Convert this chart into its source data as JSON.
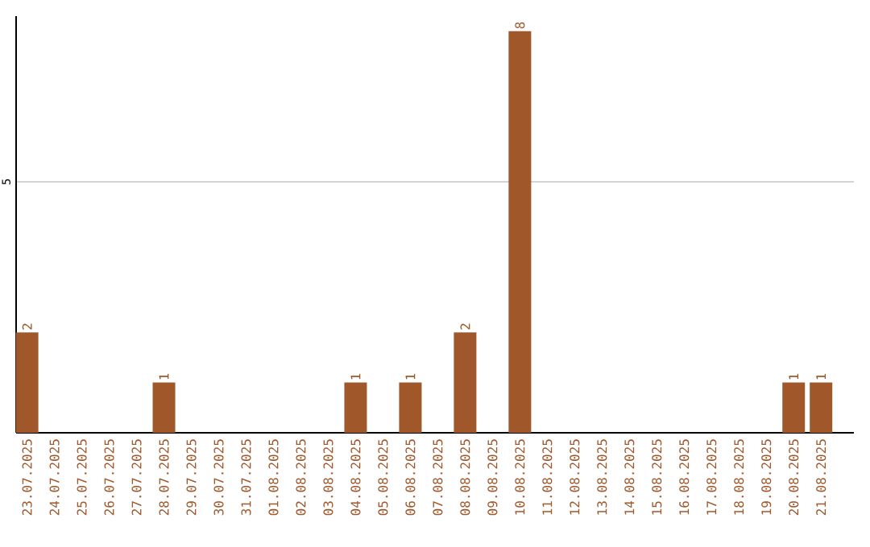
{
  "chart_data": {
    "type": "bar",
    "categories": [
      "23.07.2025",
      "24.07.2025",
      "25.07.2025",
      "26.07.2025",
      "27.07.2025",
      "28.07.2025",
      "29.07.2025",
      "30.07.2025",
      "31.07.2025",
      "01.08.2025",
      "02.08.2025",
      "03.08.2025",
      "04.08.2025",
      "05.08.2025",
      "06.08.2025",
      "07.08.2025",
      "08.08.2025",
      "09.08.2025",
      "10.08.2025",
      "11.08.2025",
      "12.08.2025",
      "13.08.2025",
      "14.08.2025",
      "15.08.2025",
      "16.08.2025",
      "17.08.2025",
      "18.08.2025",
      "19.08.2025",
      "20.08.2025",
      "21.08.2025"
    ],
    "values": [
      2,
      0,
      0,
      0,
      0,
      1,
      0,
      0,
      0,
      0,
      0,
      0,
      1,
      0,
      1,
      0,
      2,
      0,
      8,
      0,
      0,
      0,
      0,
      0,
      0,
      0,
      0,
      0,
      1,
      1
    ],
    "value_labels": [
      "2",
      null,
      null,
      null,
      null,
      "1",
      null,
      null,
      null,
      null,
      null,
      null,
      "1",
      null,
      "1",
      null,
      "2",
      null,
      "8",
      null,
      null,
      null,
      null,
      null,
      null,
      null,
      null,
      null,
      "1",
      "1"
    ],
    "color": "#a0572a",
    "ylim": [
      0,
      8.3
    ],
    "yticks": [
      5
    ],
    "grid": "y"
  }
}
